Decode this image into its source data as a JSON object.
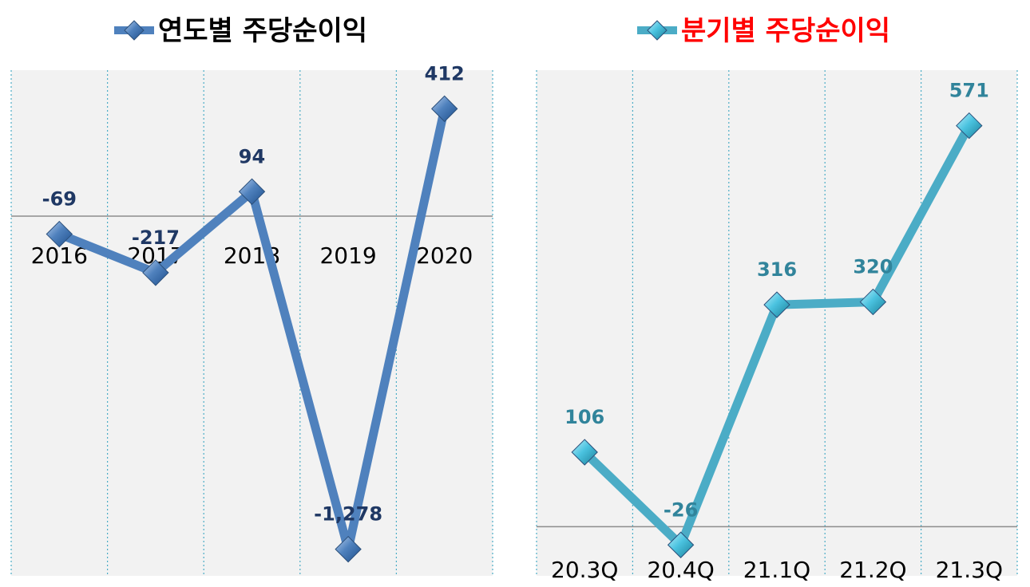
{
  "chart_data": [
    {
      "type": "line",
      "title": "연도별 주당순이익",
      "title_color": "#000000",
      "series_color": "#4F81BD",
      "label_color": "#1F3864",
      "categories": [
        "2016",
        "2017",
        "2018",
        "2019",
        "2020"
      ],
      "series": [
        {
          "values": [
            -69,
            -217,
            94,
            -1278,
            412
          ]
        }
      ],
      "data_labels": [
        "-69",
        "-217",
        "94",
        "-1,278",
        "412"
      ],
      "ylim": [
        -1380,
        560
      ],
      "grid": "vertical-dotted",
      "legend": "top"
    },
    {
      "type": "line",
      "title": "분기별 주당순이익",
      "title_color": "#FF0000",
      "series_color": "#4BACC6",
      "label_color": "#31849B",
      "categories": [
        "20.3Q",
        "20.4Q",
        "21.1Q",
        "21.2Q",
        "21.3Q"
      ],
      "series": [
        {
          "values": [
            106,
            -26,
            316,
            320,
            571
          ]
        }
      ],
      "data_labels": [
        "106",
        "-26",
        "316",
        "320",
        "571"
      ],
      "ylim": [
        -70,
        650
      ],
      "grid": "vertical-dotted",
      "legend": "top"
    }
  ]
}
